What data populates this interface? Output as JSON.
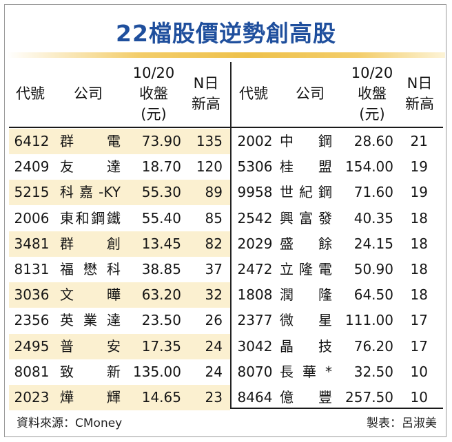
{
  "title": "22檔股價逆勢創高股",
  "headers": [
    "代號",
    "公司",
    "10/20\n收盤\n(元)",
    "N日\n新高",
    "代號",
    "公司",
    "10/20\n收盤\n(元)",
    "N日\n新高"
  ],
  "colors": {
    "title": "#1f4f9d",
    "shade": "#fbf0d0",
    "gold_line": "#eec14b"
  },
  "left_rows": [
    {
      "code": "6412",
      "company": "群電",
      "close": "73.90",
      "days": "135"
    },
    {
      "code": "2409",
      "company": "友達",
      "close": "18.70",
      "days": "120"
    },
    {
      "code": "5215",
      "company": "科嘉-KY",
      "close": "55.30",
      "days": "89"
    },
    {
      "code": "2006",
      "company": "東和鋼鐵",
      "close": "55.40",
      "days": "85"
    },
    {
      "code": "3481",
      "company": "群創",
      "close": "13.45",
      "days": "82"
    },
    {
      "code": "8131",
      "company": "福懋科",
      "close": "38.85",
      "days": "37"
    },
    {
      "code": "3036",
      "company": "文曄",
      "close": "63.20",
      "days": "32"
    },
    {
      "code": "2356",
      "company": "英業達",
      "close": "23.50",
      "days": "26"
    },
    {
      "code": "2495",
      "company": "普安",
      "close": "17.35",
      "days": "24"
    },
    {
      "code": "8081",
      "company": "致新",
      "close": "135.00",
      "days": "24"
    },
    {
      "code": "2023",
      "company": "燁輝",
      "close": "14.65",
      "days": "23"
    }
  ],
  "right_rows": [
    {
      "code": "2002",
      "company": "中鋼",
      "close": "28.60",
      "days": "21"
    },
    {
      "code": "5306",
      "company": "桂盟",
      "close": "154.00",
      "days": "19"
    },
    {
      "code": "9958",
      "company": "世紀鋼",
      "close": "71.60",
      "days": "19"
    },
    {
      "code": "2542",
      "company": "興富發",
      "close": "40.35",
      "days": "18"
    },
    {
      "code": "2029",
      "company": "盛餘",
      "close": "24.15",
      "days": "18"
    },
    {
      "code": "2472",
      "company": "立隆電",
      "close": "50.90",
      "days": "18"
    },
    {
      "code": "1808",
      "company": "潤隆",
      "close": "64.50",
      "days": "18"
    },
    {
      "code": "2377",
      "company": "微星",
      "close": "111.00",
      "days": "17"
    },
    {
      "code": "3042",
      "company": "晶技",
      "close": "76.20",
      "days": "17"
    },
    {
      "code": "8070",
      "company": "長華*",
      "close": "32.50",
      "days": "10"
    },
    {
      "code": "8464",
      "company": "億豐",
      "close": "257.50",
      "days": "10"
    }
  ],
  "footer": {
    "source": "資料來源：CMoney",
    "maker": "製表：呂淑美"
  }
}
